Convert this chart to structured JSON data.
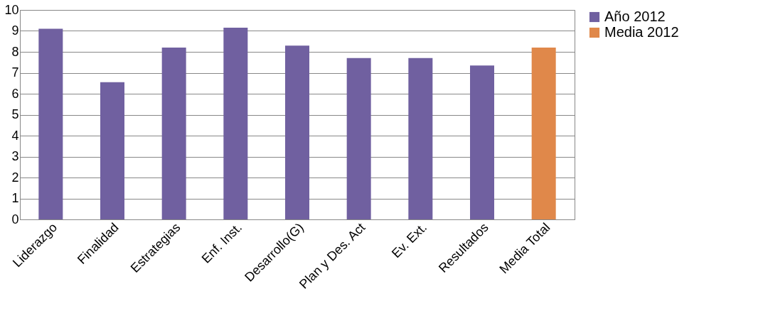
{
  "chart_data": {
    "type": "bar",
    "categories": [
      "Liderazgo",
      "Finalidad",
      "Estrategias",
      "Enf. Inst.",
      "Desarrollo(G)",
      "Plan y Des. Act",
      "Ev. Ext.",
      "Resultados",
      "Media Total"
    ],
    "series": [
      {
        "name": "Año 2012",
        "color": "#7060a0",
        "values": [
          9.1,
          6.55,
          8.2,
          9.15,
          8.3,
          7.7,
          7.7,
          7.35,
          null
        ]
      },
      {
        "name": "Media 2012",
        "color": "#e0884a",
        "values": [
          null,
          null,
          null,
          null,
          null,
          null,
          null,
          null,
          8.2
        ]
      }
    ],
    "ylim": [
      0,
      10
    ],
    "yticks": [
      0,
      1,
      2,
      3,
      4,
      5,
      6,
      7,
      8,
      9,
      10
    ],
    "grid": "y",
    "legend": "right"
  }
}
